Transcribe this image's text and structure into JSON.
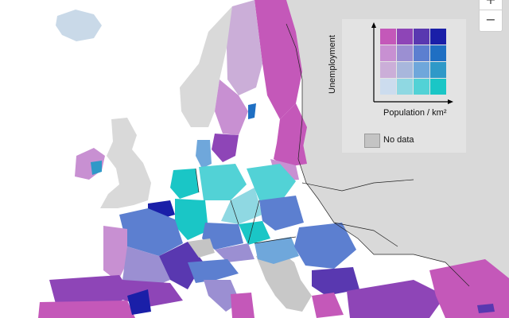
{
  "legend": {
    "y_label": "Unemployment",
    "x_label": "Population / km²",
    "no_data_label": "No data",
    "grid": [
      [
        "#c458b9",
        "#8e45b7",
        "#5938b0",
        "#1a1fa8"
      ],
      [
        "#c890d2",
        "#9b8fd2",
        "#5c7fd0",
        "#1f6fc3"
      ],
      [
        "#cbaed8",
        "#a8b7dc",
        "#6fa7db",
        "#2f99c8"
      ],
      [
        "#ccdcee",
        "#8fd8e2",
        "#52d2d6",
        "#1ac6c6"
      ]
    ],
    "no_data_color": "#c4c4c4"
  },
  "zoom": {
    "in_label": "+",
    "out_label": "−"
  },
  "colors": {
    "sea": "#ffffff",
    "outside_land": "#d8d8d8",
    "border": "#222222"
  }
}
